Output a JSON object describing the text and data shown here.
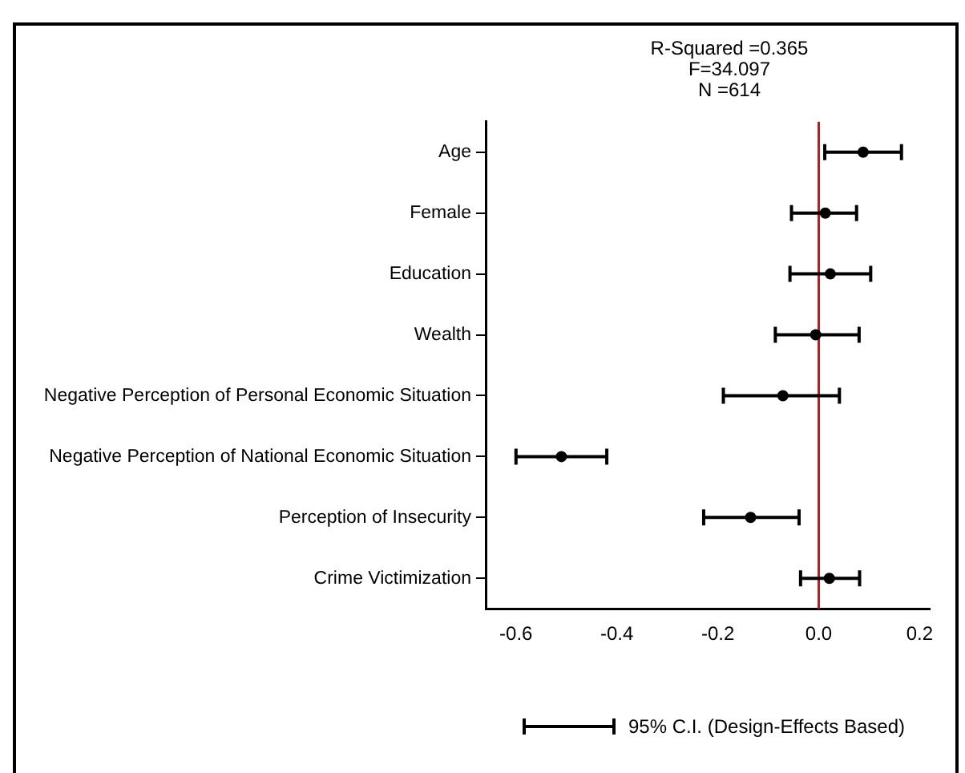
{
  "chart_data": {
    "type": "scatter",
    "orientation": "horizontal",
    "categories": [
      "Age",
      "Female",
      "Education",
      "Wealth",
      "Negative Perception of Personal Economic Situation",
      "Negative Perception of National Economic Situation",
      "Perception of Insecurity",
      "Crime Victimization"
    ],
    "series": [
      {
        "color": "#000000",
        "values": [
          0.088,
          0.013,
          0.023,
          -0.006,
          -0.071,
          -0.51,
          -0.135,
          0.021
        ],
        "errors": [
          [
            0.012,
            0.164
          ],
          [
            -0.054,
            0.075
          ],
          [
            -0.057,
            0.103
          ],
          [
            -0.086,
            0.08
          ],
          [
            -0.189,
            0.041
          ],
          [
            -0.6,
            -0.42
          ],
          [
            -0.228,
            -0.039
          ],
          [
            -0.036,
            0.081
          ]
        ]
      }
    ],
    "xlim": [
      -0.66,
      0.22
    ],
    "xticks": [
      -0.6,
      -0.4,
      -0.2,
      {
        "value": 0,
        "label": "0.0"
      },
      0.2
    ],
    "ref_lines": [
      {
        "axis": "x",
        "value": 0,
        "color": "#b22222"
      }
    ],
    "marker": "circle",
    "grid": false,
    "legend": false,
    "annotations": [
      "R-Squared =0.365",
      "F=34.097",
      "N =614",
      "95% C.I. (Design-Effects Based)"
    ]
  }
}
